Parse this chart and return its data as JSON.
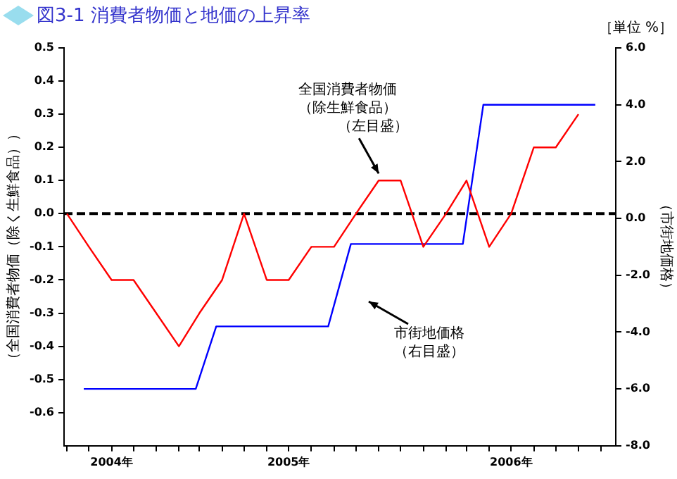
{
  "chart_data": {
    "type": "line",
    "title": "図3-1 消費者物価と地価の上昇率",
    "ylabel": "（全国消費者物価（除く生鮮食品））",
    "y2label": "（市街地価格）",
    "x": [
      "2004-09",
      "2004-10",
      "2004-11",
      "2004-12",
      "2005-01",
      "2005-02",
      "2005-03",
      "2005-04",
      "2005-05",
      "2005-06",
      "2005-07",
      "2005-08",
      "2005-09",
      "2005-10",
      "2005-11",
      "2005-12",
      "2006-01",
      "2006-02",
      "2006-03",
      "2006-04",
      "2006-05",
      "2006-06",
      "2006-07",
      "2006-08"
    ],
    "series": [
      {
        "color": "#ff0000",
        "values": [
          0.0,
          -0.1,
          -0.2,
          -0.2,
          -0.3,
          -0.4,
          -0.3,
          -0.2,
          0.0,
          -0.2,
          -0.2,
          -0.1,
          -0.1,
          0.0,
          0.1,
          0.1,
          -0.1,
          0.0,
          0.1,
          -0.1,
          0.0,
          0.2,
          0.2,
          0.3
        ]
      },
      {
        "color": "#0000ff",
        "axis": "y2",
        "x": [
          "2004-09-24",
          "2005-02-24",
          "2005-03-24",
          "2005-08-24",
          "2005-09-24",
          "2006-02-24",
          "2006-03-24",
          "2006-08-24"
        ],
        "values": [
          -6.0,
          -6.0,
          -3.8,
          -3.8,
          -0.9,
          -0.9,
          4.0,
          4.0
        ]
      }
    ],
    "xlim": [
      "2004-08-28",
      "2006-09-21"
    ],
    "xticks": [
      {
        "value": "2004-09",
        "label": null
      },
      {
        "value": "2004-10",
        "label": null
      },
      {
        "value": "2004-11",
        "label": "2004年"
      },
      {
        "value": "2004-12",
        "label": null
      },
      {
        "value": "2005-01",
        "label": null
      },
      {
        "value": "2005-02",
        "label": null
      },
      {
        "value": "2005-03",
        "label": null
      },
      {
        "value": "2005-04",
        "label": null
      },
      {
        "value": "2005-05",
        "label": null
      },
      {
        "value": "2005-06",
        "label": null
      },
      {
        "value": "2005-07",
        "label": "2005年"
      },
      {
        "value": "2005-08",
        "label": null
      },
      {
        "value": "2005-09",
        "label": null
      },
      {
        "value": "2005-10",
        "label": null
      },
      {
        "value": "2005-11",
        "label": null
      },
      {
        "value": "2005-12",
        "label": null
      },
      {
        "value": "2006-01",
        "label": null
      },
      {
        "value": "2006-02",
        "label": null
      },
      {
        "value": "2006-03",
        "label": null
      },
      {
        "value": "2006-04",
        "label": null
      },
      {
        "value": "2006-05",
        "label": "2006年"
      },
      {
        "value": "2006-06",
        "label": null
      },
      {
        "value": "2006-07",
        "label": null
      },
      {
        "value": "2006-08",
        "label": null
      },
      {
        "value": "2006-09",
        "label": null
      }
    ],
    "ylim": [
      -0.7,
      0.5
    ],
    "yticks": [
      -0.6,
      -0.5,
      -0.4,
      -0.3,
      -0.2,
      -0.1,
      {
        "value": 0,
        "label": "0.0"
      },
      0.1,
      0.2,
      0.3,
      0.4,
      0.5
    ],
    "y2lim": [
      -8,
      6
    ],
    "y2ticks": [
      {
        "value": -8,
        "label": "-8.0"
      },
      {
        "value": -6,
        "label": "-6.0"
      },
      {
        "value": -4,
        "label": "-4.0"
      },
      {
        "value": -2,
        "label": "-2.0"
      },
      {
        "value": 0,
        "label": "0.0"
      },
      {
        "value": 2,
        "label": "2.0"
      },
      {
        "value": 4,
        "label": "4.0"
      },
      {
        "value": 6,
        "label": "6.0"
      }
    ],
    "ref_lines": [
      {
        "axis": "y",
        "value": 0,
        "color": "#000000",
        "line_style": "dashed"
      }
    ],
    "annotations": [
      {
        "text": "全国消費者物価（除生鮮食品）（左目盛）",
        "x": "2005-11",
        "y": 0.1
      },
      "市街地価格（右目盛）",
      "［単位 %］"
    ],
    "grid": false,
    "legend": false,
    "marker": "none",
    "line_style": "solid"
  }
}
